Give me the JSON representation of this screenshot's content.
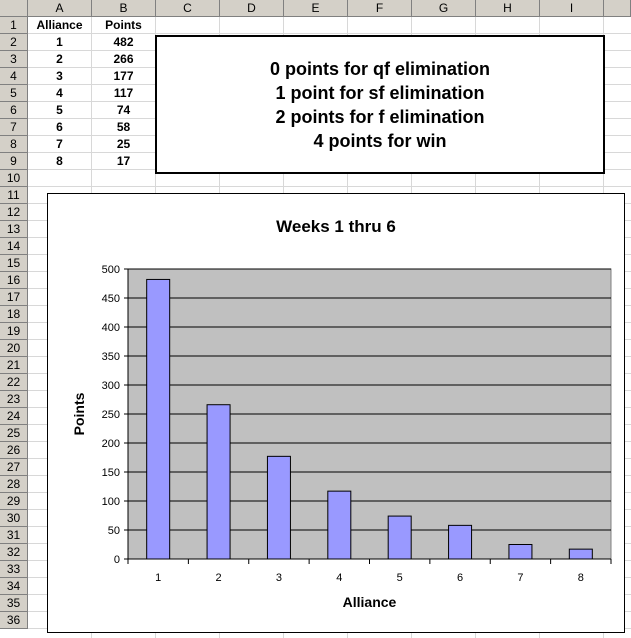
{
  "columns": [
    "A",
    "B",
    "C",
    "D",
    "E",
    "F",
    "G",
    "H",
    "I"
  ],
  "rows": [
    "1",
    "2",
    "3",
    "4",
    "5",
    "6",
    "7",
    "8",
    "9",
    "10",
    "11",
    "12",
    "13",
    "14",
    "15",
    "16",
    "17",
    "18",
    "19",
    "20",
    "21",
    "22",
    "23",
    "24",
    "25",
    "26",
    "27",
    "28",
    "29",
    "30",
    "31",
    "32",
    "33",
    "34",
    "35",
    "36"
  ],
  "table": {
    "headers": [
      "Alliance",
      "Points"
    ],
    "data": [
      [
        "1",
        "482"
      ],
      [
        "2",
        "266"
      ],
      [
        "3",
        "177"
      ],
      [
        "4",
        "117"
      ],
      [
        "5",
        "74"
      ],
      [
        "6",
        "58"
      ],
      [
        "7",
        "25"
      ],
      [
        "8",
        "17"
      ]
    ]
  },
  "textbox": {
    "lines": [
      "0 points for qf elimination",
      "1 point for sf elimination",
      "2 points for f elimination",
      "4 points for win"
    ]
  },
  "chart_data": {
    "type": "bar",
    "title": "Weeks 1 thru 6",
    "xlabel": "Alliance",
    "ylabel": "Points",
    "categories": [
      "1",
      "2",
      "3",
      "4",
      "5",
      "6",
      "7",
      "8"
    ],
    "values": [
      482,
      266,
      177,
      117,
      74,
      58,
      25,
      17
    ],
    "ylim": [
      0,
      500
    ],
    "yticks": [
      0,
      50,
      100,
      150,
      200,
      250,
      300,
      350,
      400,
      450,
      500
    ],
    "grid": true,
    "legend": "none",
    "colors": {
      "bar": "#9999ff",
      "plot_bg": "#c0c0c0",
      "bar_border": "#000000"
    }
  }
}
